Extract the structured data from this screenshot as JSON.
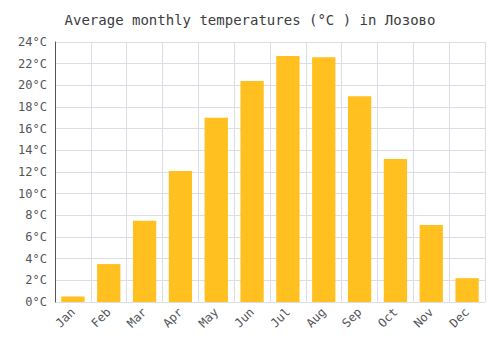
{
  "chart_data": {
    "type": "bar",
    "title": "Average monthly temperatures (°C ) in Лозово",
    "categories": [
      "Jan",
      "Feb",
      "Mar",
      "Apr",
      "May",
      "Jun",
      "Jul",
      "Aug",
      "Sep",
      "Oct",
      "Nov",
      "Dec"
    ],
    "values": [
      0.5,
      3.5,
      7.5,
      12.1,
      17.0,
      20.4,
      22.7,
      22.6,
      19.0,
      13.2,
      7.1,
      2.2
    ],
    "color": "#FFC020",
    "ylim": [
      0,
      24
    ],
    "yticks": [
      {
        "value": 0,
        "label": "0°C"
      },
      {
        "value": 2,
        "label": "2°C"
      },
      {
        "value": 4,
        "label": "4°C"
      },
      {
        "value": 6,
        "label": "6°C"
      },
      {
        "value": 8,
        "label": "8°C"
      },
      {
        "value": 10,
        "label": "10°C"
      },
      {
        "value": 12,
        "label": "12°C"
      },
      {
        "value": 14,
        "label": "14°C"
      },
      {
        "value": 16,
        "label": "16°C"
      },
      {
        "value": 18,
        "label": "18°C"
      },
      {
        "value": 20,
        "label": "20°C"
      },
      {
        "value": 22,
        "label": "22°C"
      },
      {
        "value": 24,
        "label": "24°C"
      }
    ],
    "grid": true
  }
}
